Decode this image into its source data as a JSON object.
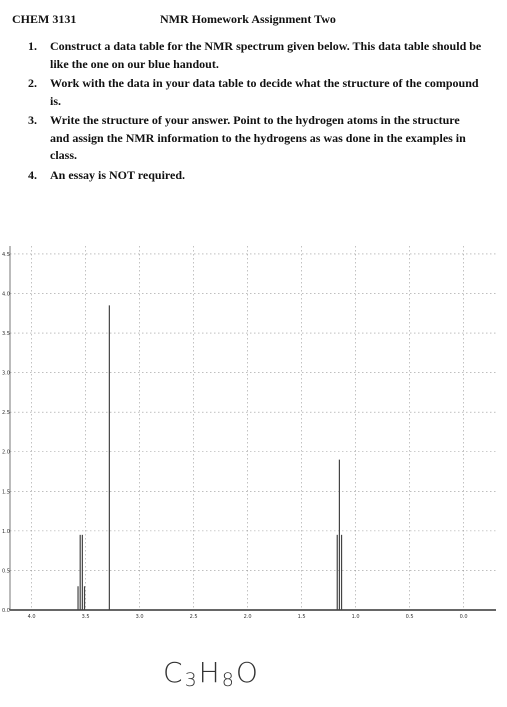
{
  "header": {
    "course": "CHEM 3131",
    "title": "NMR Homework Assignment Two"
  },
  "instructions": [
    {
      "number": "1.",
      "text": "Construct a data table for the NMR spectrum given below.  This data table should be like the one on our blue handout."
    },
    {
      "number": "2.",
      "text": "Work with the data in your data table to decide what the structure of the compound is."
    },
    {
      "number": "3.",
      "text": "Write the structure of your answer.  Point to the hydrogen atoms in the structure and assign the NMR information to the hydrogens as was done in the examples in class."
    },
    {
      "number": "4.",
      "text": "An essay is NOT required."
    }
  ],
  "chart_data": {
    "type": "stick",
    "x": [
      3.57,
      3.55,
      3.53,
      3.51,
      3.28,
      1.17,
      1.15,
      1.13
    ],
    "values": [
      0.3,
      0.95,
      0.95,
      0.3,
      3.85,
      0.95,
      1.9,
      0.95
    ],
    "color": "#444444",
    "xlim": [
      4.2,
      -0.3
    ],
    "xticks": [
      {
        "value": 4,
        "label": "4.0"
      },
      3.5,
      {
        "value": 3,
        "label": "3.0"
      },
      2.5,
      {
        "value": 2,
        "label": "2.0"
      },
      1.5,
      {
        "value": 1,
        "label": "1.0"
      },
      0.5,
      {
        "value": 0,
        "label": "0.0"
      }
    ],
    "ylim": [
      0,
      4.6
    ],
    "yticks": [
      {
        "value": 0,
        "label": "0.0"
      },
      0.5,
      {
        "value": 1,
        "label": "1.0"
      },
      1.5,
      {
        "value": 2,
        "label": "2.0"
      },
      2.5,
      {
        "value": 3,
        "label": "3.0"
      },
      3.5,
      {
        "value": 4,
        "label": "4.0"
      },
      4.5
    ],
    "grid": true
  },
  "formula": [
    "C",
    "3",
    "H",
    "8",
    "O"
  ]
}
